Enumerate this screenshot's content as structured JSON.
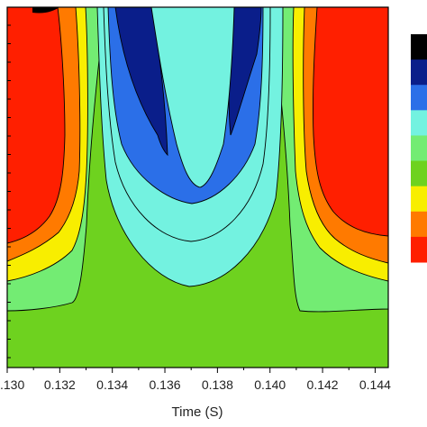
{
  "chart_data": {
    "type": "contour",
    "title": "",
    "xlabel": "Time (S)",
    "ylabel": "",
    "x_ticks": [
      0.13,
      0.132,
      0.134,
      0.136,
      0.138,
      0.14,
      0.142,
      0.144
    ],
    "x_tick_labels": [
      ".130",
      "0.132",
      "0.134",
      "0.136",
      "0.138",
      "0.140",
      "0.142",
      "0.144"
    ],
    "xlim": [
      0.13,
      0.1445
    ],
    "colorbar_levels": [
      "#000000",
      "#0a1e8a",
      "#2b6fe8",
      "#73f2e0",
      "#73ec73",
      "#6ed21f",
      "#f8ee00",
      "#ff7a00",
      "#ff1f00"
    ],
    "grid": false,
    "legend": "colorbar at right"
  }
}
